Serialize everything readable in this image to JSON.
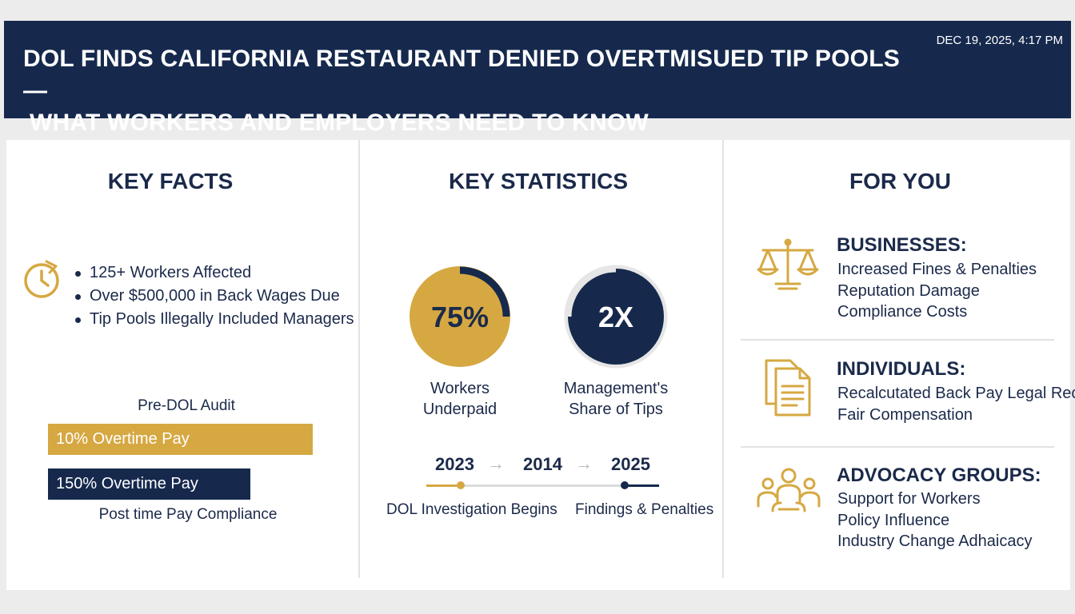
{
  "header": {
    "title_line1": "DOL FINDS CALIFORNIA RESTAURANT DENIED OVERTMISUED TIP POOLS —",
    "title_line2": "WHAT WORKERS AND EMPLOYERS NEED TO KNOW",
    "timestamp": "DEC 19, 2025, 4:17 PM"
  },
  "key_facts": {
    "title": "KEY FACTS",
    "icon": "clock-icon",
    "items": [
      "125+ Workers Affected",
      "Over $500,000 in Back Wages Due",
      "Tip Pools Illegally Included Managers"
    ],
    "pre_label": "Pre-DOL Audit",
    "bar_gold_label": "10% Overtime Pay",
    "bar_navy_label": "150% Overtime Pay",
    "post_label": "Post time Pay Compliance"
  },
  "key_statistics": {
    "title": "KEY STATISTICS",
    "stat1": {
      "value": "75%",
      "label_line1": "Workers",
      "label_line2": "Underpaid",
      "fraction": 0.75
    },
    "stat2": {
      "value": "2X",
      "label_line1": "Management's",
      "label_line2": "Share of Tips"
    },
    "timeline": {
      "years": [
        "2023",
        "2014",
        "2025"
      ],
      "label_start": "DOL Investigation Begins",
      "label_end": "Findings & Penalties"
    }
  },
  "for_you": {
    "title": "FOR YOU",
    "groups": [
      {
        "icon": "scales-icon",
        "title": "BUSINESSES:",
        "items": [
          "Increased Fines & Penalties",
          "Reputation Damage",
          "Compliance Costs"
        ]
      },
      {
        "icon": "documents-icon",
        "title": "INDIVIDUALS:",
        "items": [
          "Recalcutated Back Pay Legal Recorse",
          "Fair Compensation"
        ]
      },
      {
        "icon": "people-icon",
        "title": "ADVOCACY GROUPS:",
        "items": [
          "Support for Workers",
          "Policy Influence",
          "Industry Change Adhaicacy"
        ]
      }
    ]
  },
  "colors": {
    "navy": "#16294d",
    "gold": "#d6a842",
    "background": "#ececec"
  }
}
